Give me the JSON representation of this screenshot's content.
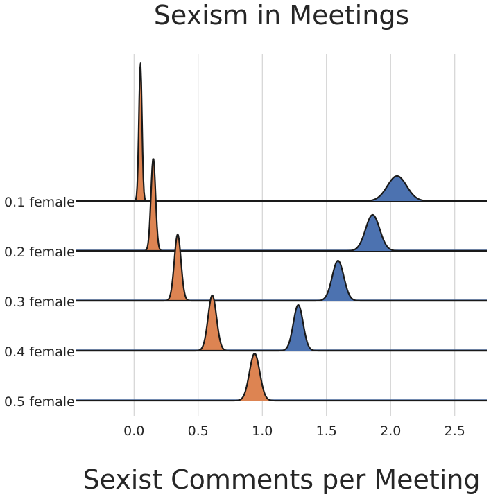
{
  "chart_data": {
    "type": "ridgeline",
    "title": "Sexism in Meetings",
    "xlabel": "Sexist Comments per Meeting",
    "ylabel": "",
    "xlim": [
      -0.45,
      2.75
    ],
    "x_ticks": [
      "0.0",
      "0.5",
      "1.0",
      "1.5",
      "2.0",
      "2.5"
    ],
    "x_tick_values": [
      0.0,
      0.5,
      1.0,
      1.5,
      2.0,
      2.5
    ],
    "grid": true,
    "colors": {
      "orange": "#dd8452",
      "blue": "#4c72b0",
      "outline": "#1a1a1a",
      "grid": "#cccccc"
    },
    "rows": [
      {
        "label": "0.1 female",
        "distributions": [
          {
            "color": "orange",
            "mean": 0.05,
            "sd": 0.012,
            "peak": 1.0
          },
          {
            "color": "blue",
            "mean": 2.05,
            "sd": 0.075,
            "peak": 0.18
          }
        ]
      },
      {
        "label": "0.2 female",
        "distributions": [
          {
            "color": "orange",
            "mean": 0.15,
            "sd": 0.018,
            "peak": 0.67
          },
          {
            "color": "blue",
            "mean": 1.86,
            "sd": 0.055,
            "peak": 0.26
          }
        ]
      },
      {
        "label": "0.3 female",
        "distributions": [
          {
            "color": "orange",
            "mean": 0.34,
            "sd": 0.026,
            "peak": 0.48
          },
          {
            "color": "blue",
            "mean": 1.59,
            "sd": 0.045,
            "peak": 0.29
          }
        ]
      },
      {
        "label": "0.4 female",
        "distributions": [
          {
            "color": "orange",
            "mean": 0.61,
            "sd": 0.033,
            "peak": 0.4
          },
          {
            "color": "blue",
            "mean": 1.28,
            "sd": 0.038,
            "peak": 0.33
          }
        ]
      },
      {
        "label": "0.5 female",
        "distributions": [
          {
            "color": "orange",
            "mean": 0.94,
            "sd": 0.04,
            "peak": 0.34
          }
        ]
      }
    ]
  }
}
